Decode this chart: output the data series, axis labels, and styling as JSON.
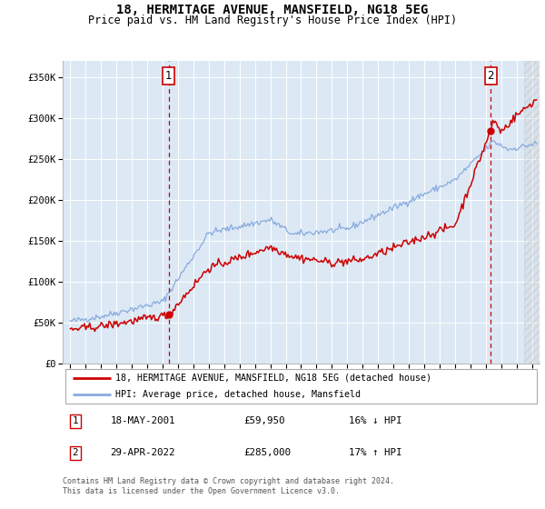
{
  "title": "18, HERMITAGE AVENUE, MANSFIELD, NG18 5EG",
  "subtitle": "Price paid vs. HM Land Registry's House Price Index (HPI)",
  "ylabel_ticks": [
    "£0",
    "£50K",
    "£100K",
    "£150K",
    "£200K",
    "£250K",
    "£300K",
    "£350K"
  ],
  "ytick_vals": [
    0,
    50000,
    100000,
    150000,
    200000,
    250000,
    300000,
    350000
  ],
  "ylim": [
    0,
    370000
  ],
  "xlim_start": 1994.5,
  "xlim_end": 2025.5,
  "plot_bg_color": "#dce9f5",
  "line_color_property": "#cc0000",
  "line_color_hpi": "#88aadd",
  "sale1_year": 2001.38,
  "sale1_price": 59950,
  "sale2_year": 2022.33,
  "sale2_price": 285000,
  "legend_label1": "18, HERMITAGE AVENUE, MANSFIELD, NG18 5EG (detached house)",
  "legend_label2": "HPI: Average price, detached house, Mansfield",
  "annotation1_date": "18-MAY-2001",
  "annotation1_price": "£59,950",
  "annotation1_hpi": "16% ↓ HPI",
  "annotation2_date": "29-APR-2022",
  "annotation2_price": "£285,000",
  "annotation2_hpi": "17% ↑ HPI",
  "footer": "Contains HM Land Registry data © Crown copyright and database right 2024.\nThis data is licensed under the Open Government Licence v3.0.",
  "hatch_start": 2024.5,
  "title_fontsize": 10,
  "subtitle_fontsize": 8.5,
  "tick_fontsize": 7.5
}
